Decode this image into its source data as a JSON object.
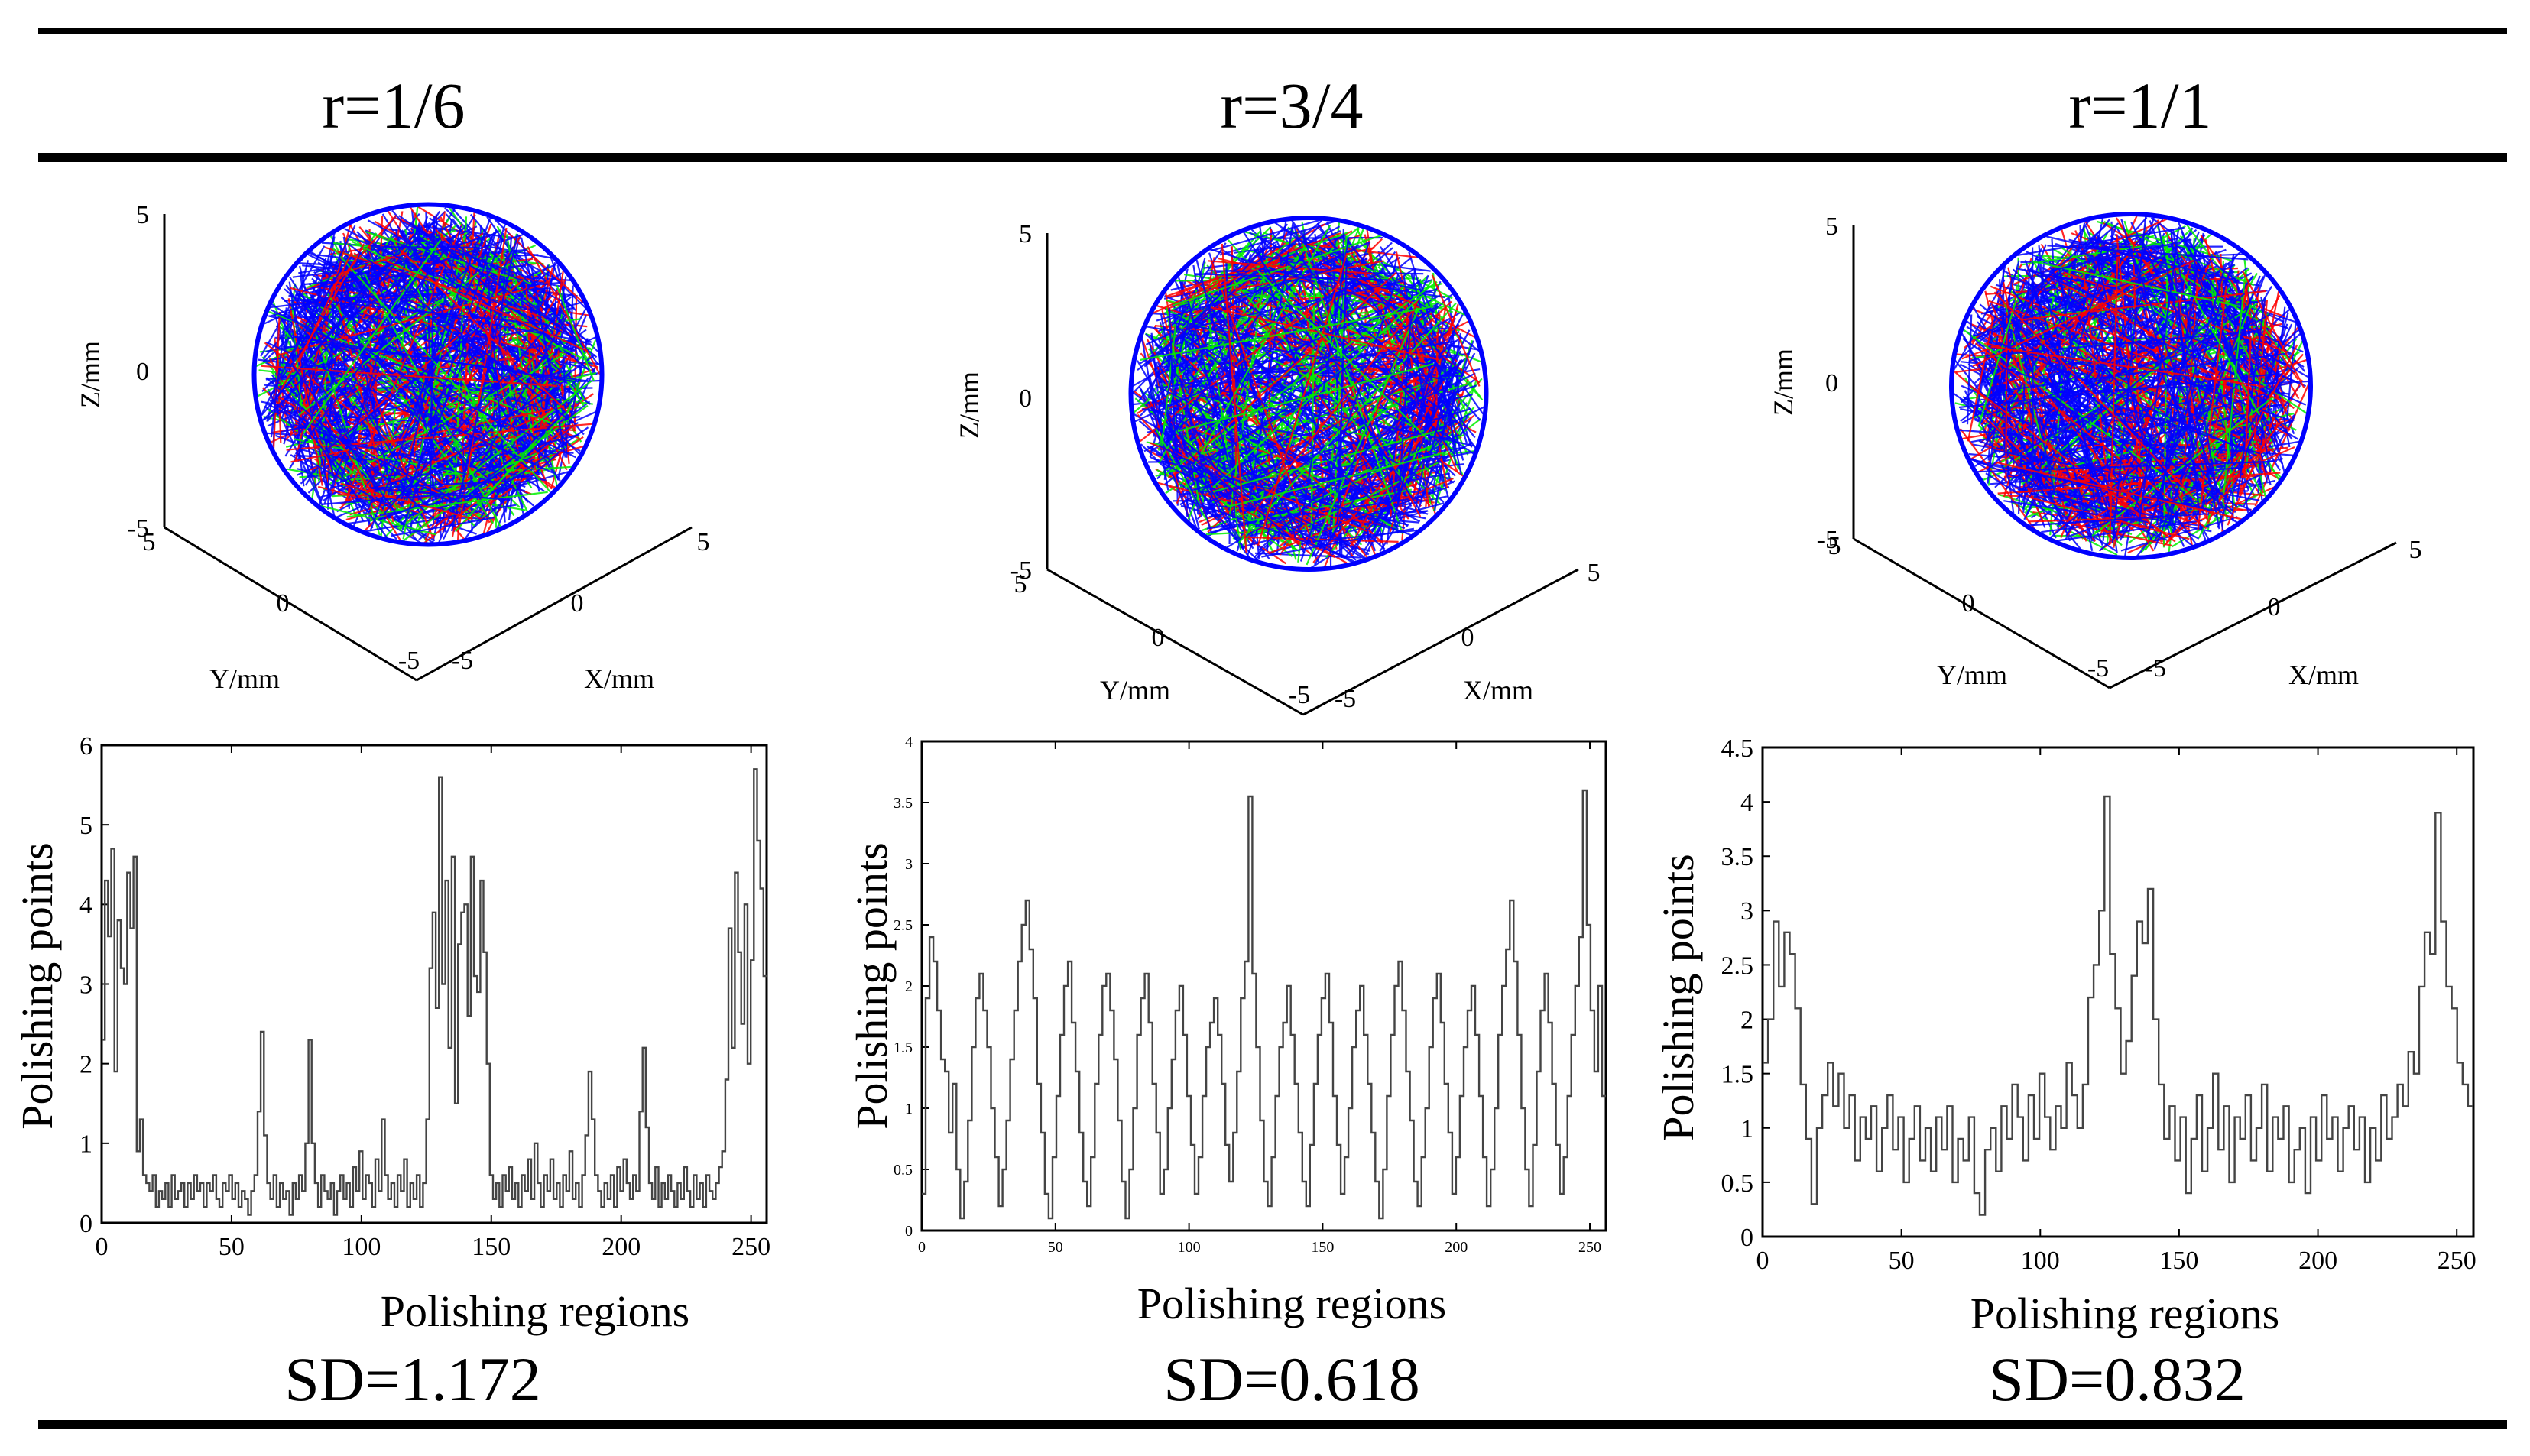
{
  "columns": [
    {
      "id": "col1",
      "heading": "r=1/6",
      "sd": "SD=1.172"
    },
    {
      "id": "col2",
      "heading": "r=3/4",
      "sd": "SD=0.618"
    },
    {
      "id": "col3",
      "heading": "r=1/1",
      "sd": "SD=0.832"
    }
  ],
  "colors": {
    "red": "#ff0000",
    "green": "#00ee00",
    "blue": "#0000ff",
    "line": "#000000",
    "trace": "#444444"
  },
  "sphere_axes": {
    "xlabel": "X/mm",
    "ylabel": "Y/mm",
    "zlabel": "Z/mm",
    "ticks": {
      "z": [
        "5",
        "0",
        "-5"
      ],
      "y": [
        "5",
        "0",
        "-5"
      ],
      "x": [
        "-5",
        "0",
        "5"
      ]
    }
  },
  "chart_data": [
    {
      "type": "line",
      "title": "",
      "xlabel": "Polishing regions",
      "ylabel": "Polishing points",
      "xlim": [
        0,
        256
      ],
      "ylim": [
        0,
        6
      ],
      "xticks": [
        "0",
        "50",
        "100",
        "150",
        "200",
        "250"
      ],
      "yticks": [
        "0",
        "1",
        "2",
        "3",
        "4",
        "5",
        "6"
      ],
      "series": [
        {
          "name": "r=1/6",
          "values": [
            2.3,
            4.3,
            3.6,
            4.7,
            1.9,
            3.8,
            3.2,
            3.0,
            4.4,
            3.7,
            4.6,
            0.9,
            1.3,
            0.6,
            0.5,
            0.4,
            0.6,
            0.2,
            0.4,
            0.3,
            0.5,
            0.2,
            0.6,
            0.3,
            0.4,
            0.5,
            0.2,
            0.5,
            0.3,
            0.6,
            0.4,
            0.5,
            0.2,
            0.5,
            0.4,
            0.6,
            0.3,
            0.2,
            0.5,
            0.4,
            0.6,
            0.3,
            0.5,
            0.2,
            0.4,
            0.3,
            0.1,
            0.4,
            0.6,
            1.4,
            2.4,
            1.1,
            0.5,
            0.3,
            0.6,
            0.2,
            0.5,
            0.3,
            0.4,
            0.1,
            0.5,
            0.3,
            0.6,
            0.4,
            1.0,
            2.3,
            1.0,
            0.5,
            0.2,
            0.6,
            0.4,
            0.3,
            0.5,
            0.1,
            0.4,
            0.6,
            0.3,
            0.5,
            0.2,
            0.7,
            0.4,
            0.9,
            0.3,
            0.6,
            0.5,
            0.2,
            0.8,
            0.4,
            1.3,
            0.6,
            0.3,
            0.5,
            0.2,
            0.6,
            0.4,
            0.8,
            0.2,
            0.5,
            0.3,
            0.6,
            0.2,
            0.5,
            1.3,
            3.2,
            3.9,
            2.7,
            5.6,
            3.0,
            4.3,
            2.2,
            4.6,
            1.5,
            3.5,
            3.9,
            4.0,
            2.6,
            4.6,
            3.1,
            2.9,
            4.3,
            3.4,
            2.0,
            0.6,
            0.3,
            0.5,
            0.2,
            0.6,
            0.4,
            0.7,
            0.3,
            0.5,
            0.2,
            0.6,
            0.4,
            0.8,
            0.3,
            1.0,
            0.5,
            0.2,
            0.6,
            0.4,
            0.8,
            0.3,
            0.5,
            0.2,
            0.6,
            0.4,
            0.9,
            0.3,
            0.5,
            0.2,
            0.6,
            1.1,
            1.9,
            1.3,
            0.6,
            0.4,
            0.2,
            0.5,
            0.3,
            0.6,
            0.2,
            0.7,
            0.4,
            0.8,
            0.5,
            0.3,
            0.6,
            0.4,
            1.4,
            2.2,
            1.2,
            0.5,
            0.3,
            0.7,
            0.2,
            0.5,
            0.3,
            0.6,
            0.4,
            0.2,
            0.5,
            0.3,
            0.7,
            0.4,
            0.2,
            0.6,
            0.3,
            0.5,
            0.2,
            0.6,
            0.4,
            0.3,
            0.5,
            0.7,
            0.9,
            1.8,
            3.7,
            2.2,
            4.4,
            3.4,
            2.5,
            4.0,
            2.0,
            3.3,
            5.7,
            4.8,
            4.2,
            3.1
          ]
        }
      ]
    },
    {
      "type": "line",
      "title": "",
      "xlabel": "Polishing regions",
      "ylabel": "Polishing points",
      "xlim": [
        0,
        256
      ],
      "ylim": [
        0,
        4
      ],
      "xticks": [
        "0",
        "50",
        "100",
        "150",
        "200",
        "250"
      ],
      "yticks": [
        "0",
        "0.5",
        "1",
        "1.5",
        "2",
        "2.5",
        "3",
        "3.5",
        "4"
      ],
      "series": [
        {
          "name": "r=3/4",
          "values": [
            0.3,
            1.9,
            2.4,
            2.2,
            1.8,
            1.4,
            1.3,
            0.8,
            1.2,
            0.5,
            0.1,
            0.4,
            0.9,
            1.5,
            1.9,
            2.1,
            1.8,
            1.5,
            1.0,
            0.6,
            0.2,
            0.5,
            0.9,
            1.4,
            1.8,
            2.2,
            2.5,
            2.7,
            2.3,
            1.9,
            1.2,
            0.8,
            0.3,
            0.1,
            0.6,
            1.1,
            1.6,
            2.0,
            2.2,
            1.7,
            1.3,
            0.8,
            0.4,
            0.2,
            0.6,
            1.2,
            1.6,
            2.0,
            2.1,
            1.8,
            1.4,
            0.9,
            0.4,
            0.1,
            0.5,
            1.0,
            1.6,
            1.9,
            2.1,
            1.7,
            1.2,
            0.8,
            0.3,
            0.5,
            1.0,
            1.4,
            1.8,
            2.0,
            1.6,
            1.1,
            0.7,
            0.3,
            0.6,
            1.1,
            1.5,
            1.7,
            1.9,
            1.6,
            1.2,
            0.7,
            0.4,
            0.8,
            1.3,
            1.9,
            2.2,
            3.55,
            2.1,
            1.5,
            0.9,
            0.4,
            0.2,
            0.6,
            1.1,
            1.5,
            1.7,
            2.0,
            1.6,
            1.2,
            0.8,
            0.4,
            0.2,
            0.7,
            1.2,
            1.6,
            1.9,
            2.1,
            1.7,
            1.1,
            0.7,
            0.3,
            0.6,
            1.0,
            1.5,
            1.8,
            2.0,
            1.6,
            1.2,
            0.8,
            0.4,
            0.1,
            0.5,
            1.1,
            1.6,
            2.0,
            2.2,
            1.8,
            1.3,
            0.9,
            0.4,
            0.2,
            0.6,
            1.0,
            1.5,
            1.9,
            2.1,
            1.7,
            1.2,
            0.8,
            0.3,
            0.6,
            1.1,
            1.5,
            1.8,
            2.0,
            1.6,
            1.1,
            0.6,
            0.2,
            0.5,
            1.0,
            1.6,
            2.0,
            2.3,
            2.7,
            2.2,
            1.6,
            1.0,
            0.5,
            0.2,
            0.7,
            1.3,
            1.8,
            2.1,
            1.7,
            1.2,
            0.7,
            0.3,
            0.6,
            1.1,
            1.6,
            2.0,
            2.4,
            3.6,
            2.5,
            1.8,
            1.3,
            2.0,
            1.1
          ]
        }
      ]
    },
    {
      "type": "line",
      "title": "",
      "xlabel": "Polishing regions",
      "ylabel": "Polishing points",
      "xlim": [
        0,
        256
      ],
      "ylim": [
        0,
        4.5
      ],
      "xticks": [
        "0",
        "50",
        "100",
        "150",
        "200",
        "250"
      ],
      "yticks": [
        "0",
        "0.5",
        "1",
        "1.5",
        "2",
        "2.5",
        "3",
        "3.5",
        "4",
        "4.5"
      ],
      "series": [
        {
          "name": "r=1/1",
          "values": [
            1.6,
            2.0,
            2.9,
            2.3,
            2.8,
            2.6,
            2.1,
            1.4,
            0.9,
            0.3,
            1.0,
            1.3,
            1.6,
            1.2,
            1.5,
            1.0,
            1.3,
            0.7,
            1.1,
            0.9,
            1.2,
            0.6,
            1.0,
            1.3,
            0.8,
            1.1,
            0.5,
            0.9,
            1.2,
            0.7,
            1.0,
            0.6,
            1.1,
            0.8,
            1.2,
            0.5,
            0.9,
            0.7,
            1.1,
            0.4,
            0.2,
            0.8,
            1.0,
            0.6,
            1.2,
            0.9,
            1.4,
            1.1,
            0.7,
            1.3,
            0.9,
            1.5,
            1.1,
            0.8,
            1.2,
            1.0,
            1.6,
            1.3,
            1.0,
            1.4,
            2.2,
            2.5,
            3.0,
            4.05,
            2.6,
            2.1,
            1.5,
            1.8,
            2.4,
            2.9,
            2.7,
            3.2,
            2.0,
            1.4,
            0.9,
            1.2,
            0.7,
            1.1,
            0.4,
            0.9,
            1.3,
            0.6,
            1.0,
            1.5,
            0.8,
            1.2,
            0.5,
            1.1,
            0.9,
            1.3,
            0.7,
            1.0,
            1.4,
            0.6,
            1.1,
            0.9,
            1.2,
            0.5,
            0.8,
            1.0,
            0.4,
            1.1,
            0.7,
            1.3,
            0.9,
            1.1,
            0.6,
            1.0,
            1.2,
            0.8,
            1.1,
            0.5,
            1.0,
            0.7,
            1.3,
            0.9,
            1.1,
            1.4,
            1.2,
            1.7,
            1.5,
            2.3,
            2.8,
            2.6,
            3.9,
            2.9,
            2.3,
            2.1,
            1.6,
            1.4,
            1.2
          ]
        }
      ]
    }
  ]
}
